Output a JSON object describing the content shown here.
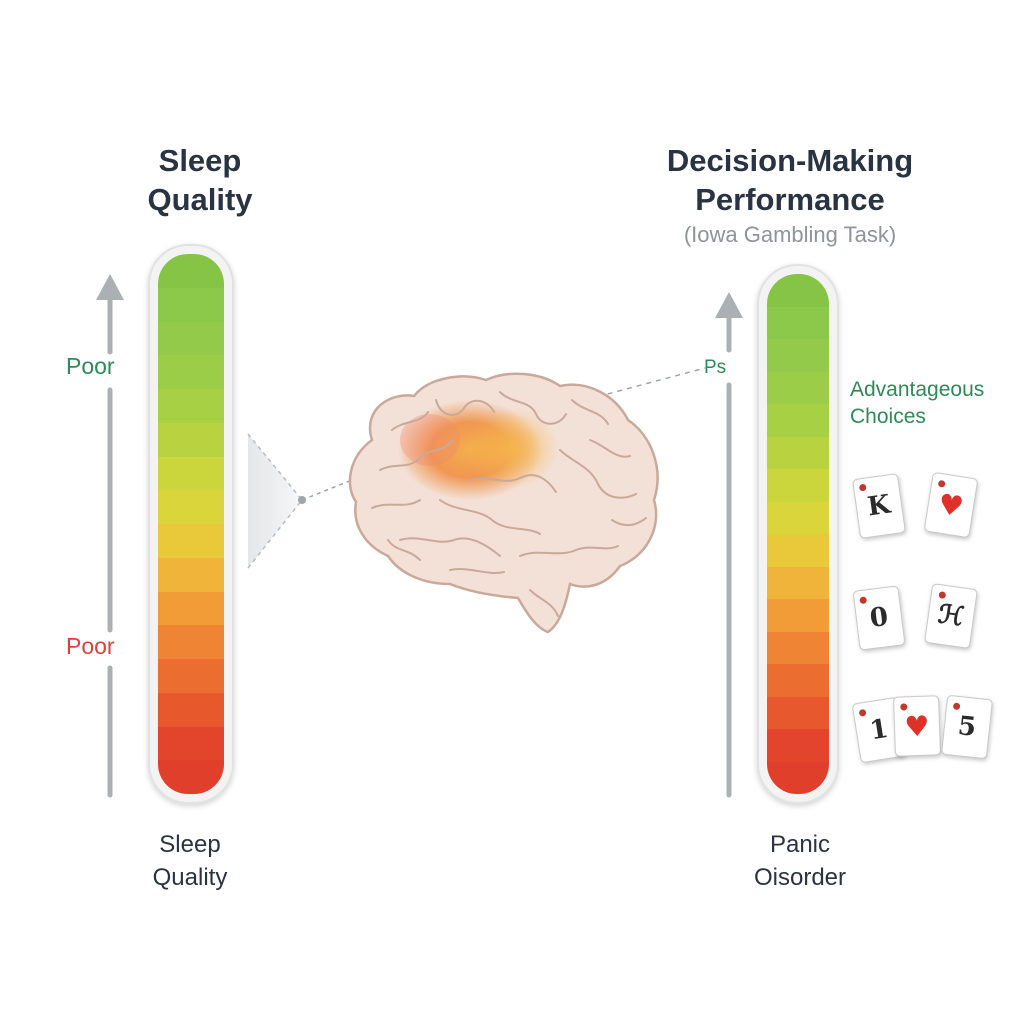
{
  "left_panel": {
    "title_line1": "Sleep",
    "title_line2": "Quality",
    "upper_label": "Poor",
    "lower_label": "Poor",
    "bottom_line1": "Sleep",
    "bottom_line2": "Quality"
  },
  "right_panel": {
    "title_line1": "Decision-Making",
    "title_line2": "Performance",
    "subtitle": "(Iowa Gambling Task)",
    "upper_label": "Ps",
    "advantageous_line1": "Advantageous",
    "advantageous_line2": "Choices",
    "bottom_line1": "Panic",
    "bottom_line2": "Oisorder"
  },
  "cards": [
    {
      "symbol": "K"
    },
    {
      "symbol": "♥"
    },
    {
      "symbol": "0"
    },
    {
      "symbol": "ℋ"
    },
    {
      "symbol": "1"
    },
    {
      "symbol": "♥"
    },
    {
      "symbol": "5"
    }
  ],
  "colors": {
    "bar_gradient": [
      "#86c446",
      "#8cc84a",
      "#93ca4a",
      "#9ccd48",
      "#a8d045",
      "#b9d340",
      "#cbd53c",
      "#dad53a",
      "#e9c93a",
      "#f0b43a",
      "#f29c38",
      "#ef8534",
      "#eb6d30",
      "#e7582d",
      "#e2452b",
      "#e0402b"
    ],
    "label_green": "#2e8b57",
    "label_red": "#e0403a",
    "axis_gray": "#aab0b3",
    "brain_base": "#f3e0d6",
    "brain_highlight": "#f29433"
  },
  "icons": {
    "left_axis": "up-arrow-icon",
    "right_axis": "up-arrow-icon",
    "brain": "brain-icon"
  }
}
